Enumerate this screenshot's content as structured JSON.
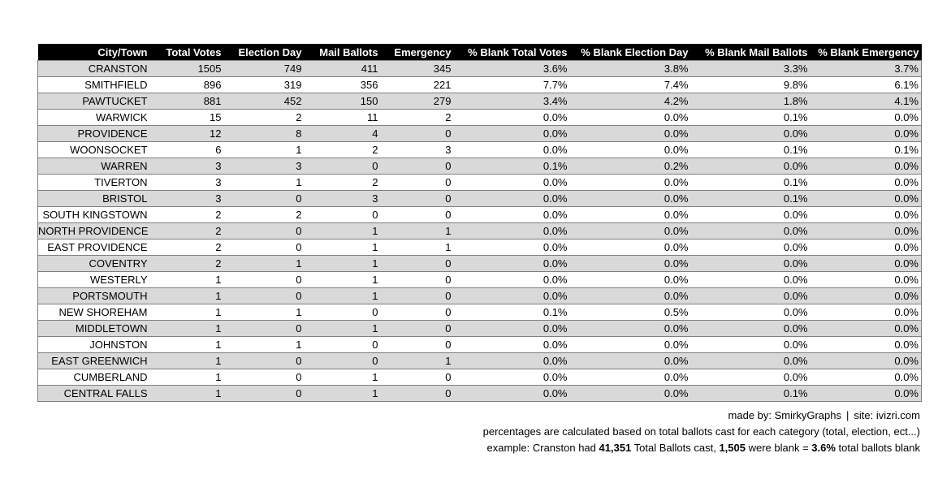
{
  "chart_data": {
    "type": "table",
    "columns": [
      "City/Town",
      "Total Votes",
      "Election Day",
      "Mail Ballots",
      "Emergency",
      "% Blank Total Votes",
      "% Blank Election Day",
      "% Blank Mail Ballots",
      "% Blank Emergency"
    ],
    "rows": [
      [
        "CRANSTON",
        "1505",
        "749",
        "411",
        "345",
        "3.6%",
        "3.8%",
        "3.3%",
        "3.7%"
      ],
      [
        "SMITHFIELD",
        "896",
        "319",
        "356",
        "221",
        "7.7%",
        "7.4%",
        "9.8%",
        "6.1%"
      ],
      [
        "PAWTUCKET",
        "881",
        "452",
        "150",
        "279",
        "3.4%",
        "4.2%",
        "1.8%",
        "4.1%"
      ],
      [
        "WARWICK",
        "15",
        "2",
        "11",
        "2",
        "0.0%",
        "0.0%",
        "0.1%",
        "0.0%"
      ],
      [
        "PROVIDENCE",
        "12",
        "8",
        "4",
        "0",
        "0.0%",
        "0.0%",
        "0.0%",
        "0.0%"
      ],
      [
        "WOONSOCKET",
        "6",
        "1",
        "2",
        "3",
        "0.0%",
        "0.0%",
        "0.1%",
        "0.1%"
      ],
      [
        "WARREN",
        "3",
        "3",
        "0",
        "0",
        "0.1%",
        "0.2%",
        "0.0%",
        "0.0%"
      ],
      [
        "TIVERTON",
        "3",
        "1",
        "2",
        "0",
        "0.0%",
        "0.0%",
        "0.1%",
        "0.0%"
      ],
      [
        "BRISTOL",
        "3",
        "0",
        "3",
        "0",
        "0.0%",
        "0.0%",
        "0.1%",
        "0.0%"
      ],
      [
        "SOUTH KINGSTOWN",
        "2",
        "2",
        "0",
        "0",
        "0.0%",
        "0.0%",
        "0.0%",
        "0.0%"
      ],
      [
        "NORTH PROVIDENCE",
        "2",
        "0",
        "1",
        "1",
        "0.0%",
        "0.0%",
        "0.0%",
        "0.0%"
      ],
      [
        "EAST PROVIDENCE",
        "2",
        "0",
        "1",
        "1",
        "0.0%",
        "0.0%",
        "0.0%",
        "0.0%"
      ],
      [
        "COVENTRY",
        "2",
        "1",
        "1",
        "0",
        "0.0%",
        "0.0%",
        "0.0%",
        "0.0%"
      ],
      [
        "WESTERLY",
        "1",
        "0",
        "1",
        "0",
        "0.0%",
        "0.0%",
        "0.0%",
        "0.0%"
      ],
      [
        "PORTSMOUTH",
        "1",
        "0",
        "1",
        "0",
        "0.0%",
        "0.0%",
        "0.0%",
        "0.0%"
      ],
      [
        "NEW SHOREHAM",
        "1",
        "1",
        "0",
        "0",
        "0.1%",
        "0.5%",
        "0.0%",
        "0.0%"
      ],
      [
        "MIDDLETOWN",
        "1",
        "0",
        "1",
        "0",
        "0.0%",
        "0.0%",
        "0.0%",
        "0.0%"
      ],
      [
        "JOHNSTON",
        "1",
        "1",
        "0",
        "0",
        "0.0%",
        "0.0%",
        "0.0%",
        "0.0%"
      ],
      [
        "EAST GREENWICH",
        "1",
        "0",
        "0",
        "1",
        "0.0%",
        "0.0%",
        "0.0%",
        "0.0%"
      ],
      [
        "CUMBERLAND",
        "1",
        "0",
        "1",
        "0",
        "0.0%",
        "0.0%",
        "0.0%",
        "0.0%"
      ],
      [
        "CENTRAL FALLS",
        "1",
        "0",
        "1",
        "0",
        "0.0%",
        "0.0%",
        "0.1%",
        "0.0%"
      ]
    ]
  },
  "notes": {
    "credit": "made by: SmirkyGraphs",
    "separator": "|",
    "site": "site: ivizri.com",
    "method": "percentages are calculated based on total ballots cast for each category (total, election, ect...)",
    "example": {
      "prefix": "example: Cranston had ",
      "total_ballots": "41,351",
      "mid": " Total Ballots cast, ",
      "blank_ballots": "1,505",
      "mid2": " were blank = ",
      "pct": "3.6%",
      "suffix": " total ballots blank"
    }
  },
  "colors": {
    "header_bg": "#000000",
    "header_text": "#ffffff",
    "row_shaded": "#d9d9d9",
    "row_plain": "#ffffff",
    "border": "#7f7f7f"
  }
}
